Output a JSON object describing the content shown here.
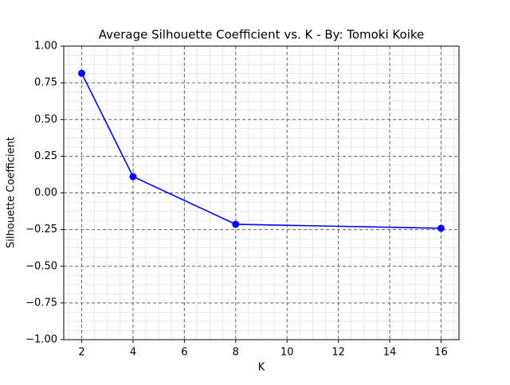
{
  "chart_data": {
    "type": "line",
    "title": "Average Silhouette Coefficient vs. K - By: Tomoki Koike",
    "xlabel": "K",
    "ylabel": "Silhouette Coefficient",
    "x": [
      2,
      4,
      8,
      16
    ],
    "values": [
      0.815,
      0.111,
      -0.214,
      -0.241
    ],
    "color": "#0000ff",
    "xlim": [
      1.3,
      16.7
    ],
    "xticks": [
      2,
      4,
      6,
      8,
      10,
      12,
      14,
      16
    ],
    "ylim": [
      -1,
      1
    ],
    "yticks": [
      {
        "value": -1,
        "label": "−1.00"
      },
      {
        "value": -0.75,
        "label": "−0.75"
      },
      {
        "value": -0.5,
        "label": "−0.50"
      },
      {
        "value": -0.25,
        "label": "−0.25"
      },
      {
        "value": 0,
        "label": "0.00"
      },
      {
        "value": 0.25,
        "label": "0.25"
      },
      {
        "value": 0.5,
        "label": "0.50"
      },
      {
        "value": 0.75,
        "label": "0.75"
      },
      {
        "value": 1,
        "label": "1.00"
      }
    ],
    "grid": true,
    "minor_grid": true
  }
}
